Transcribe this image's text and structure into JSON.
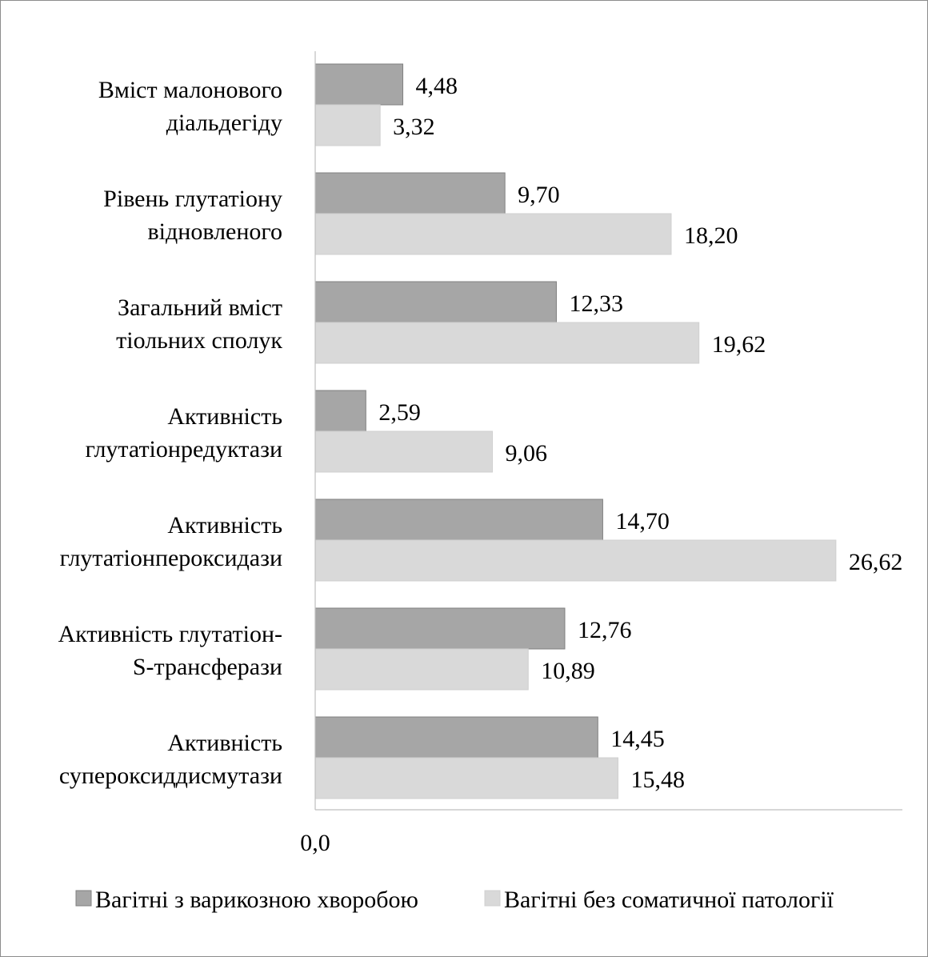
{
  "chart_data": {
    "type": "bar",
    "orientation": "horizontal",
    "title": "",
    "xlabel": "",
    "ylabel": "",
    "xlim": [
      0,
      30
    ],
    "x_tick_labels": [
      "0,0"
    ],
    "grid": false,
    "legend_position": "bottom",
    "categories": [
      [
        "Вміст малонового",
        "діальдегіду"
      ],
      [
        "Рівень глутатіону",
        "відновленого"
      ],
      [
        "Загальний вміст",
        "тіольних сполук"
      ],
      [
        "Активність",
        "глутатіонредуктази"
      ],
      [
        "Активність",
        "глутатіонпероксидази"
      ],
      [
        "Активність  глутатіон-",
        "S-трансферази"
      ],
      [
        "Активність",
        "супероксиддисмутази"
      ]
    ],
    "series": [
      {
        "name": "Вагітні з варикозною хворобою",
        "color": "#a6a6a6",
        "values": [
          4.48,
          9.7,
          12.33,
          2.59,
          14.7,
          12.76,
          14.45
        ],
        "value_labels": [
          "4,48",
          "9,70",
          "12,33",
          "2,59",
          "14,70",
          "12,76",
          "14,45"
        ]
      },
      {
        "name": "Вагітні без соматичної патології",
        "color": "#d9d9d9",
        "values": [
          3.32,
          18.2,
          19.62,
          9.06,
          26.62,
          10.89,
          15.48
        ],
        "value_labels": [
          "3,32",
          "18,20",
          "19,62",
          "9,06",
          "26,62",
          "10,89",
          "15,48"
        ]
      }
    ]
  }
}
